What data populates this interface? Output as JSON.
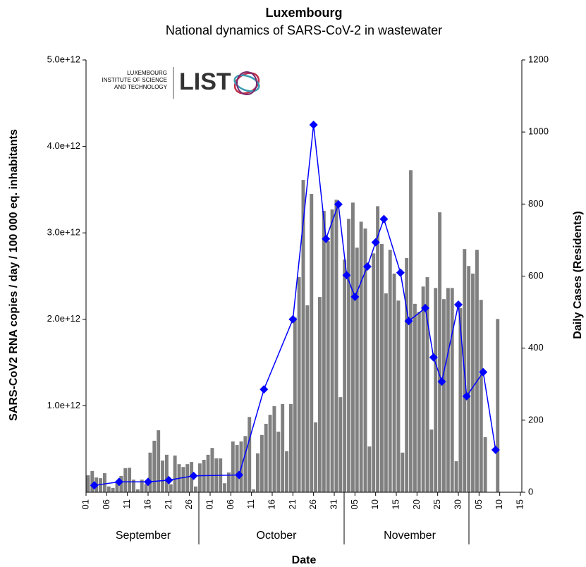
{
  "chart_data": {
    "type": "bar-line",
    "title": "Luxembourg",
    "subtitle": "National dynamics of SARS-CoV-2 in wastewater",
    "xlabel": "Date",
    "ylabel": "SARS-CoV2 RNA copies / day  / 100 000 eq. inhabitants",
    "y2label": "Daily Cases (Residents)",
    "logo": {
      "line1": "LUXEMBOURG",
      "line2": "INSTITUTE OF SCIENCE",
      "line3": "AND TECHNOLOGY",
      "mark": "LIST"
    },
    "months": [
      "September",
      "October",
      "November"
    ],
    "xlim": [
      0,
      105
    ],
    "xticks": [
      {
        "value": 0,
        "label": "01"
      },
      {
        "value": 5,
        "label": "06"
      },
      {
        "value": 10,
        "label": "11"
      },
      {
        "value": 15,
        "label": "16"
      },
      {
        "value": 20,
        "label": "21"
      },
      {
        "value": 25,
        "label": "26"
      },
      {
        "value": 30,
        "label": "01"
      },
      {
        "value": 35,
        "label": "06"
      },
      {
        "value": 40,
        "label": "11"
      },
      {
        "value": 45,
        "label": "16"
      },
      {
        "value": 50,
        "label": "21"
      },
      {
        "value": 55,
        "label": "26"
      },
      {
        "value": 60,
        "label": "31"
      },
      {
        "value": 65,
        "label": "05"
      },
      {
        "value": 70,
        "label": "10"
      },
      {
        "value": 75,
        "label": "15"
      },
      {
        "value": 80,
        "label": "20"
      },
      {
        "value": 85,
        "label": "25"
      },
      {
        "value": 90,
        "label": "30"
      },
      {
        "value": 95,
        "label": "05"
      },
      {
        "value": 100,
        "label": "10"
      },
      {
        "value": 105,
        "label": "15"
      }
    ],
    "ylim": [
      0,
      5000000000000.0
    ],
    "yticks": [
      {
        "value": 1000000000000.0,
        "label": "1.0e+12"
      },
      {
        "value": 2000000000000.0,
        "label": "2.0e+12"
      },
      {
        "value": 3000000000000.0,
        "label": "3.0e+12"
      },
      {
        "value": 4000000000000.0,
        "label": "4.0e+12"
      },
      {
        "value": 5000000000000.0,
        "label": "5.0e+12"
      }
    ],
    "y2lim": [
      0,
      1200
    ],
    "y2ticks": [
      0,
      200,
      400,
      600,
      800,
      1000,
      1200
    ],
    "series": [
      {
        "kind": "bar",
        "axis": "y2",
        "color": "#808080",
        "x": [
          0,
          1,
          2,
          3,
          4,
          5,
          6,
          7,
          8,
          9,
          10,
          11,
          12,
          13,
          14,
          15,
          16,
          17,
          18,
          19,
          20,
          21,
          22,
          23,
          24,
          25,
          26,
          27,
          28,
          29,
          30,
          31,
          32,
          33,
          34,
          35,
          36,
          37,
          38,
          39,
          40,
          41,
          42,
          43,
          44,
          45,
          46,
          47,
          48,
          49,
          50,
          51,
          52,
          53,
          54,
          55,
          56,
          57,
          58,
          59,
          60,
          61,
          62,
          63,
          64,
          65,
          66,
          67,
          68,
          69,
          70,
          71,
          72,
          73,
          74,
          75,
          76,
          77,
          78,
          79,
          80,
          81,
          82,
          83,
          84,
          85,
          86,
          87,
          88,
          89,
          90,
          91,
          92,
          93,
          94,
          95,
          96,
          97,
          98,
          99
        ],
        "values": [
          47,
          59,
          41,
          39,
          53,
          16,
          12,
          27,
          45,
          67,
          68,
          35,
          8,
          35,
          23,
          110,
          143,
          172,
          88,
          104,
          22,
          102,
          78,
          70,
          78,
          84,
          16,
          80,
          90,
          104,
          123,
          94,
          94,
          25,
          55,
          141,
          131,
          141,
          156,
          209,
          8,
          108,
          159,
          190,
          215,
          239,
          168,
          245,
          114,
          245,
          485,
          597,
          867,
          519,
          828,
          194,
          542,
          781,
          697,
          785,
          812,
          264,
          646,
          759,
          804,
          679,
          751,
          732,
          127,
          663,
          794,
          689,
          552,
          673,
          607,
          532,
          110,
          650,
          894,
          523,
          501,
          571,
          597,
          174,
          567,
          777,
          536,
          567,
          567,
          86,
          511,
          675,
          628,
          607,
          673,
          534,
          153,
          null,
          null,
          481
        ]
      },
      {
        "kind": "line",
        "axis": "y",
        "color": "#0000ff",
        "x": [
          2,
          8,
          15,
          20,
          26,
          37,
          43,
          50,
          55,
          58,
          61,
          63,
          65,
          68,
          70,
          72,
          76,
          78,
          82,
          84,
          86,
          90,
          92,
          96,
          99
        ],
        "values": [
          80000000000.0,
          120000000000.0,
          120000000000.0,
          140000000000.0,
          190000000000.0,
          200000000000.0,
          1190000000000.0,
          2000000000000.0,
          4250000000000.0,
          2930000000000.0,
          3330000000000.0,
          2510000000000.0,
          2260000000000.0,
          2610000000000.0,
          2890000000000.0,
          3160000000000.0,
          2540000000000.0,
          1980000000000.0,
          2130000000000.0,
          1560000000000.0,
          1280000000000.0,
          2170000000000.0,
          1110000000000.0,
          1390000000000.0,
          490000000000.0
        ]
      }
    ]
  }
}
